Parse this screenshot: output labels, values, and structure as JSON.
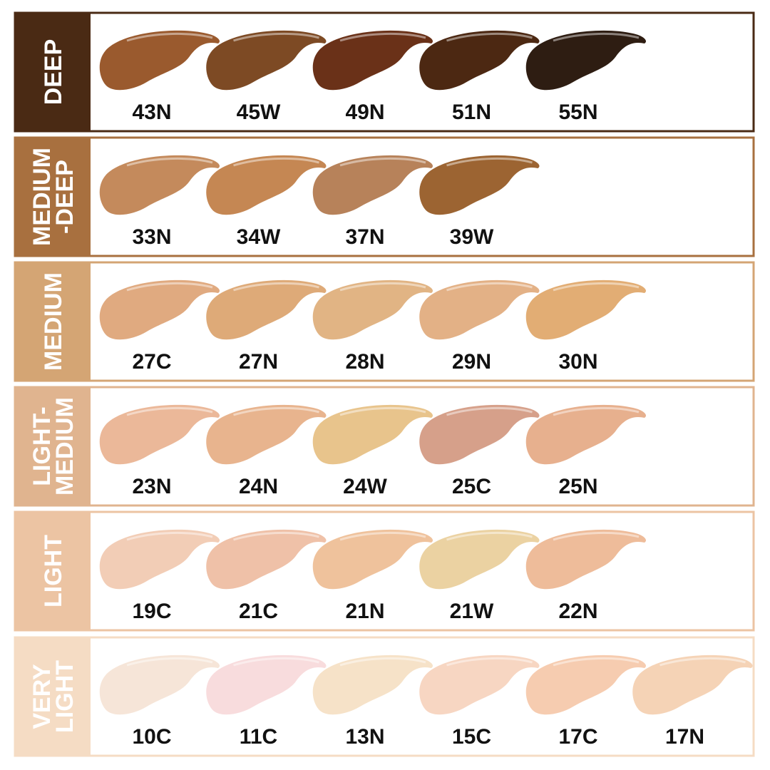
{
  "rows": [
    {
      "label_lines": [
        "DEEP"
      ],
      "color": "#4a2a14",
      "shades": [
        {
          "name": "43N",
          "color": "#9a5a2e"
        },
        {
          "name": "45W",
          "color": "#7d4a24"
        },
        {
          "name": "49N",
          "color": "#6a3118"
        },
        {
          "name": "51N",
          "color": "#4c2812"
        },
        {
          "name": "55N",
          "color": "#2e1d12"
        }
      ]
    },
    {
      "label_lines": [
        "MEDIUM",
        "-DEEP"
      ],
      "color": "#a8703f",
      "shades": [
        {
          "name": "33N",
          "color": "#c48a5c"
        },
        {
          "name": "34W",
          "color": "#c58753"
        },
        {
          "name": "37N",
          "color": "#b7825a"
        },
        {
          "name": "39W",
          "color": "#9c6432"
        }
      ]
    },
    {
      "label_lines": [
        "MEDIUM"
      ],
      "color": "#d4a574",
      "shades": [
        {
          "name": "27C",
          "color": "#e0aa80"
        },
        {
          "name": "27N",
          "color": "#deaa78"
        },
        {
          "name": "28N",
          "color": "#e1b484"
        },
        {
          "name": "29N",
          "color": "#e3b186"
        },
        {
          "name": "30N",
          "color": "#e2ad74"
        }
      ]
    },
    {
      "label_lines": [
        "LIGHT-",
        "MEDIUM"
      ],
      "color": "#e0b48f",
      "shades": [
        {
          "name": "23N",
          "color": "#ebb899"
        },
        {
          "name": "24N",
          "color": "#e8b48e"
        },
        {
          "name": "24W",
          "color": "#e8c48c"
        },
        {
          "name": "25C",
          "color": "#d6a08a"
        },
        {
          "name": "25N",
          "color": "#e7b08e"
        }
      ]
    },
    {
      "label_lines": [
        "LIGHT"
      ],
      "color": "#ecc4a3",
      "shades": [
        {
          "name": "19C",
          "color": "#f2cdb6"
        },
        {
          "name": "21C",
          "color": "#efc1a8"
        },
        {
          "name": "21N",
          "color": "#efc29c"
        },
        {
          "name": "21W",
          "color": "#ebd2a2"
        },
        {
          "name": "22N",
          "color": "#eebc9a"
        }
      ]
    },
    {
      "label_lines": [
        "VERY",
        "LIGHT"
      ],
      "color": "#f5dcc4",
      "shades": [
        {
          "name": "10C",
          "color": "#f6e5d8"
        },
        {
          "name": "11C",
          "color": "#f8dcdd"
        },
        {
          "name": "13N",
          "color": "#f6e2c8"
        },
        {
          "name": "15C",
          "color": "#f7d6c2"
        },
        {
          "name": "17C",
          "color": "#f6ccb0"
        },
        {
          "name": "17N",
          "color": "#f5d3b6"
        }
      ]
    }
  ]
}
